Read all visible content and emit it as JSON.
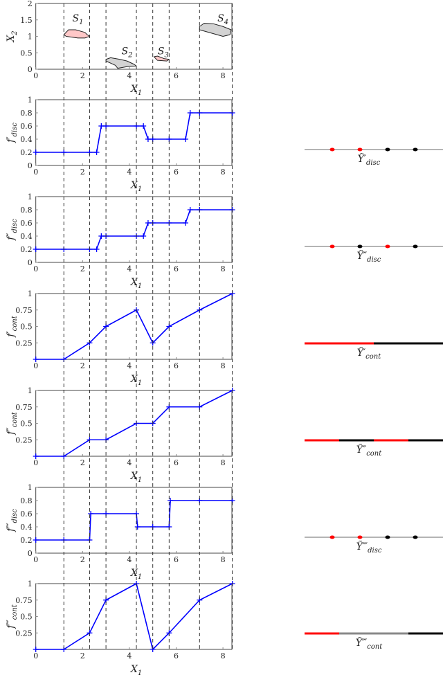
{
  "colors": {
    "series": "#0000ff",
    "region_pos": "#ffc8c8",
    "region_neg": "#d3d3d3",
    "positive": "#ff0000",
    "negative": "#000000",
    "neutral": "#888888",
    "dashed": "#333333"
  },
  "dashed_x": [
    1.2,
    2.3,
    3.0,
    4.3,
    5.0,
    5.7,
    7.0,
    8.4
  ],
  "chart_data": [
    {
      "type": "scatter-regions",
      "xlabel": "X1",
      "ylabel": {
        "main": "X",
        "sub": "2"
      },
      "xlim": [
        0,
        8.4
      ],
      "ylim": [
        0,
        2
      ],
      "xticks": [
        0,
        2,
        4,
        6,
        8
      ],
      "yticks": [
        0,
        0.5,
        1,
        1.5,
        2
      ],
      "regions": [
        {
          "label": "S",
          "sub": "1",
          "class": "positive",
          "label_at": [
            1.8,
            1.45
          ],
          "outline": [
            [
              1.2,
              1.05
            ],
            [
              1.4,
              1.2
            ],
            [
              1.7,
              1.2
            ],
            [
              2.1,
              1.12
            ],
            [
              2.2,
              1.05
            ],
            [
              2.3,
              1.0
            ],
            [
              2.1,
              0.95
            ],
            [
              1.8,
              0.95
            ],
            [
              1.3,
              1.0
            ]
          ]
        },
        {
          "label": "S",
          "sub": "2",
          "class": "negative",
          "label_at": [
            3.9,
            0.45
          ],
          "outline": [
            [
              3.0,
              0.3
            ],
            [
              3.2,
              0.35
            ],
            [
              3.6,
              0.3
            ],
            [
              3.9,
              0.25
            ],
            [
              4.2,
              0.15
            ],
            [
              4.3,
              0.1
            ],
            [
              3.9,
              0.08
            ],
            [
              3.5,
              0.03
            ],
            [
              3.4,
              0.12
            ],
            [
              3.0,
              0.25
            ]
          ]
        },
        {
          "label": "S",
          "sub": "3",
          "class": "positive",
          "label_at": [
            5.45,
            0.45
          ],
          "outline": [
            [
              5.05,
              0.38
            ],
            [
              5.2,
              0.4
            ],
            [
              5.5,
              0.32
            ],
            [
              5.7,
              0.3
            ],
            [
              5.6,
              0.25
            ],
            [
              5.2,
              0.27
            ]
          ]
        },
        {
          "label": "S",
          "sub": "4",
          "class": "negative",
          "label_at": [
            8.0,
            1.45
          ],
          "outline": [
            [
              7.0,
              1.3
            ],
            [
              7.2,
              1.4
            ],
            [
              7.6,
              1.38
            ],
            [
              8.0,
              1.3
            ],
            [
              8.35,
              1.2
            ],
            [
              8.3,
              1.05
            ],
            [
              8.0,
              1.0
            ],
            [
              7.5,
              1.1
            ],
            [
              7.0,
              1.2
            ]
          ]
        }
      ]
    },
    {
      "type": "line",
      "xlabel": "X1",
      "ylabel": {
        "main": "f′",
        "sub": "disc"
      },
      "xlim": [
        0,
        8.4
      ],
      "ylim": [
        0,
        1
      ],
      "xticks": [
        0,
        2,
        4,
        6,
        8
      ],
      "yticks": [
        0,
        0.2,
        0.4,
        0.6,
        0.8,
        1
      ],
      "x": [
        0,
        1.2,
        2.3,
        2.6,
        2.8,
        3.0,
        4.3,
        4.6,
        4.8,
        5.0,
        5.7,
        6.4,
        6.6,
        7.0,
        8.4
      ],
      "y": [
        0.2,
        0.2,
        0.2,
        0.2,
        0.6,
        0.6,
        0.6,
        0.6,
        0.4,
        0.4,
        0.4,
        0.4,
        0.8,
        0.8,
        0.8
      ],
      "projection": {
        "label": "Ỹ′",
        "sub": "disc",
        "kind": "points",
        "points": [
          [
            0.2,
            "positive"
          ],
          [
            0.4,
            "positive"
          ],
          [
            0.6,
            "negative"
          ],
          [
            0.8,
            "negative"
          ]
        ]
      }
    },
    {
      "type": "line",
      "xlabel": "X1",
      "ylabel": {
        "main": "f″",
        "sub": "disc"
      },
      "xlim": [
        0,
        8.4
      ],
      "ylim": [
        0,
        1
      ],
      "xticks": [
        0,
        2,
        4,
        6,
        8
      ],
      "yticks": [
        0,
        0.2,
        0.4,
        0.6,
        0.8,
        1
      ],
      "x": [
        0,
        1.2,
        2.3,
        2.6,
        2.8,
        3.0,
        4.3,
        4.6,
        4.8,
        5.0,
        5.7,
        6.4,
        6.6,
        7.0,
        8.4
      ],
      "y": [
        0.2,
        0.2,
        0.2,
        0.2,
        0.4,
        0.4,
        0.4,
        0.4,
        0.6,
        0.6,
        0.6,
        0.6,
        0.8,
        0.8,
        0.8
      ],
      "projection": {
        "label": "Ỹ″",
        "sub": "disc",
        "kind": "points",
        "points": [
          [
            0.2,
            "positive"
          ],
          [
            0.4,
            "negative"
          ],
          [
            0.6,
            "positive"
          ],
          [
            0.8,
            "negative"
          ]
        ]
      }
    },
    {
      "type": "line",
      "xlabel": "X1",
      "ylabel": {
        "main": "f′",
        "sub": "cont"
      },
      "xlim": [
        0,
        8.4
      ],
      "ylim": [
        0,
        1
      ],
      "xticks": [
        0,
        2,
        4,
        6,
        8
      ],
      "yticks": [
        0.25,
        0.5,
        0.75,
        1
      ],
      "x": [
        0,
        1.2,
        2.3,
        3.0,
        4.3,
        5.0,
        5.7,
        7.0,
        8.4
      ],
      "y": [
        0,
        0,
        0.25,
        0.5,
        0.75,
        0.25,
        0.5,
        0.75,
        1
      ],
      "projection": {
        "label": "Ỹ′",
        "sub": "cont",
        "kind": "segments",
        "segments": [
          [
            0,
            0.5,
            "positive"
          ],
          [
            0.5,
            1,
            "negative"
          ]
        ]
      }
    },
    {
      "type": "line",
      "xlabel": "X1",
      "ylabel": {
        "main": "f″",
        "sub": "cont"
      },
      "xlim": [
        0,
        8.4
      ],
      "ylim": [
        0,
        1
      ],
      "xticks": [
        0,
        2,
        4,
        6,
        8
      ],
      "yticks": [
        0.25,
        0.5,
        0.75,
        1
      ],
      "x": [
        0,
        1.2,
        2.3,
        3.0,
        4.3,
        5.0,
        5.7,
        7.0,
        8.4
      ],
      "y": [
        0,
        0,
        0.25,
        0.25,
        0.5,
        0.5,
        0.75,
        0.75,
        1
      ],
      "projection": {
        "label": "Ỹ″",
        "sub": "cont",
        "kind": "segments",
        "segments": [
          [
            0,
            0.25,
            "positive"
          ],
          [
            0.25,
            0.5,
            "negative"
          ],
          [
            0.5,
            0.75,
            "positive"
          ],
          [
            0.75,
            1,
            "negative"
          ]
        ]
      }
    },
    {
      "type": "line",
      "xlabel": "X1",
      "ylabel": {
        "main": "f‴",
        "sub": "disc"
      },
      "xlim": [
        0,
        8.4
      ],
      "ylim": [
        0,
        1
      ],
      "xticks": [
        0,
        2,
        4,
        6,
        8
      ],
      "yticks": [
        0,
        0.2,
        0.4,
        0.6,
        0.8,
        1
      ],
      "x": [
        0,
        1.2,
        2.3,
        2.35,
        3.0,
        4.3,
        4.35,
        5.0,
        5.7,
        5.75,
        7.0,
        8.4
      ],
      "y": [
        0.2,
        0.2,
        0.2,
        0.6,
        0.6,
        0.6,
        0.4,
        0.4,
        0.4,
        0.8,
        0.8,
        0.8
      ],
      "projection": {
        "label": "Ỹ‴",
        "sub": "disc",
        "kind": "points",
        "points": [
          [
            0.2,
            "positive"
          ],
          [
            0.4,
            "positive"
          ],
          [
            0.6,
            "negative"
          ],
          [
            0.8,
            "negative"
          ]
        ]
      }
    },
    {
      "type": "line",
      "xlabel": "X1",
      "ylabel": {
        "main": "f‴",
        "sub": "cont"
      },
      "xlim": [
        0,
        8.4
      ],
      "ylim": [
        0,
        1
      ],
      "xticks": [
        0,
        2,
        4,
        6,
        8
      ],
      "yticks": [
        0.25,
        0.5,
        0.75,
        1
      ],
      "x": [
        0,
        1.2,
        2.3,
        3.0,
        4.3,
        5.0,
        5.7,
        7.0,
        8.4
      ],
      "y": [
        0,
        0,
        0.25,
        0.75,
        1,
        0,
        0.25,
        0.75,
        1
      ],
      "projection": {
        "label": "Ỹ‴",
        "sub": "cont",
        "kind": "segments",
        "segments": [
          [
            0,
            0.25,
            "positive"
          ],
          [
            0.25,
            0.75,
            "neutral"
          ],
          [
            0.75,
            1,
            "negative"
          ]
        ]
      }
    }
  ]
}
